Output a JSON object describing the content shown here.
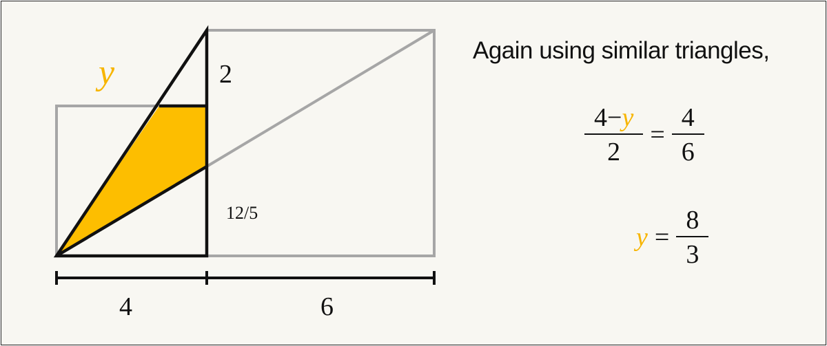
{
  "diagram": {
    "var_label": "y",
    "side_top_label": "2",
    "side_bottom_label": "12/5",
    "width_left_label": "4",
    "width_right_label": "6"
  },
  "text": {
    "heading": "Again using similar triangles,"
  },
  "equation1": {
    "lhs_num_prefix": "4−",
    "lhs_num_var": "y",
    "lhs_den": "2",
    "equals": "=",
    "rhs_num": "4",
    "rhs_den": "6"
  },
  "equation2": {
    "lhs_var": "y",
    "equals": "=",
    "rhs_num": "8",
    "rhs_den": "3"
  },
  "colors": {
    "highlight": "#fdbe00",
    "variable": "#f7b500",
    "outline": "#111111",
    "guide": "#a6a6a6",
    "background": "#f8f7f2"
  }
}
